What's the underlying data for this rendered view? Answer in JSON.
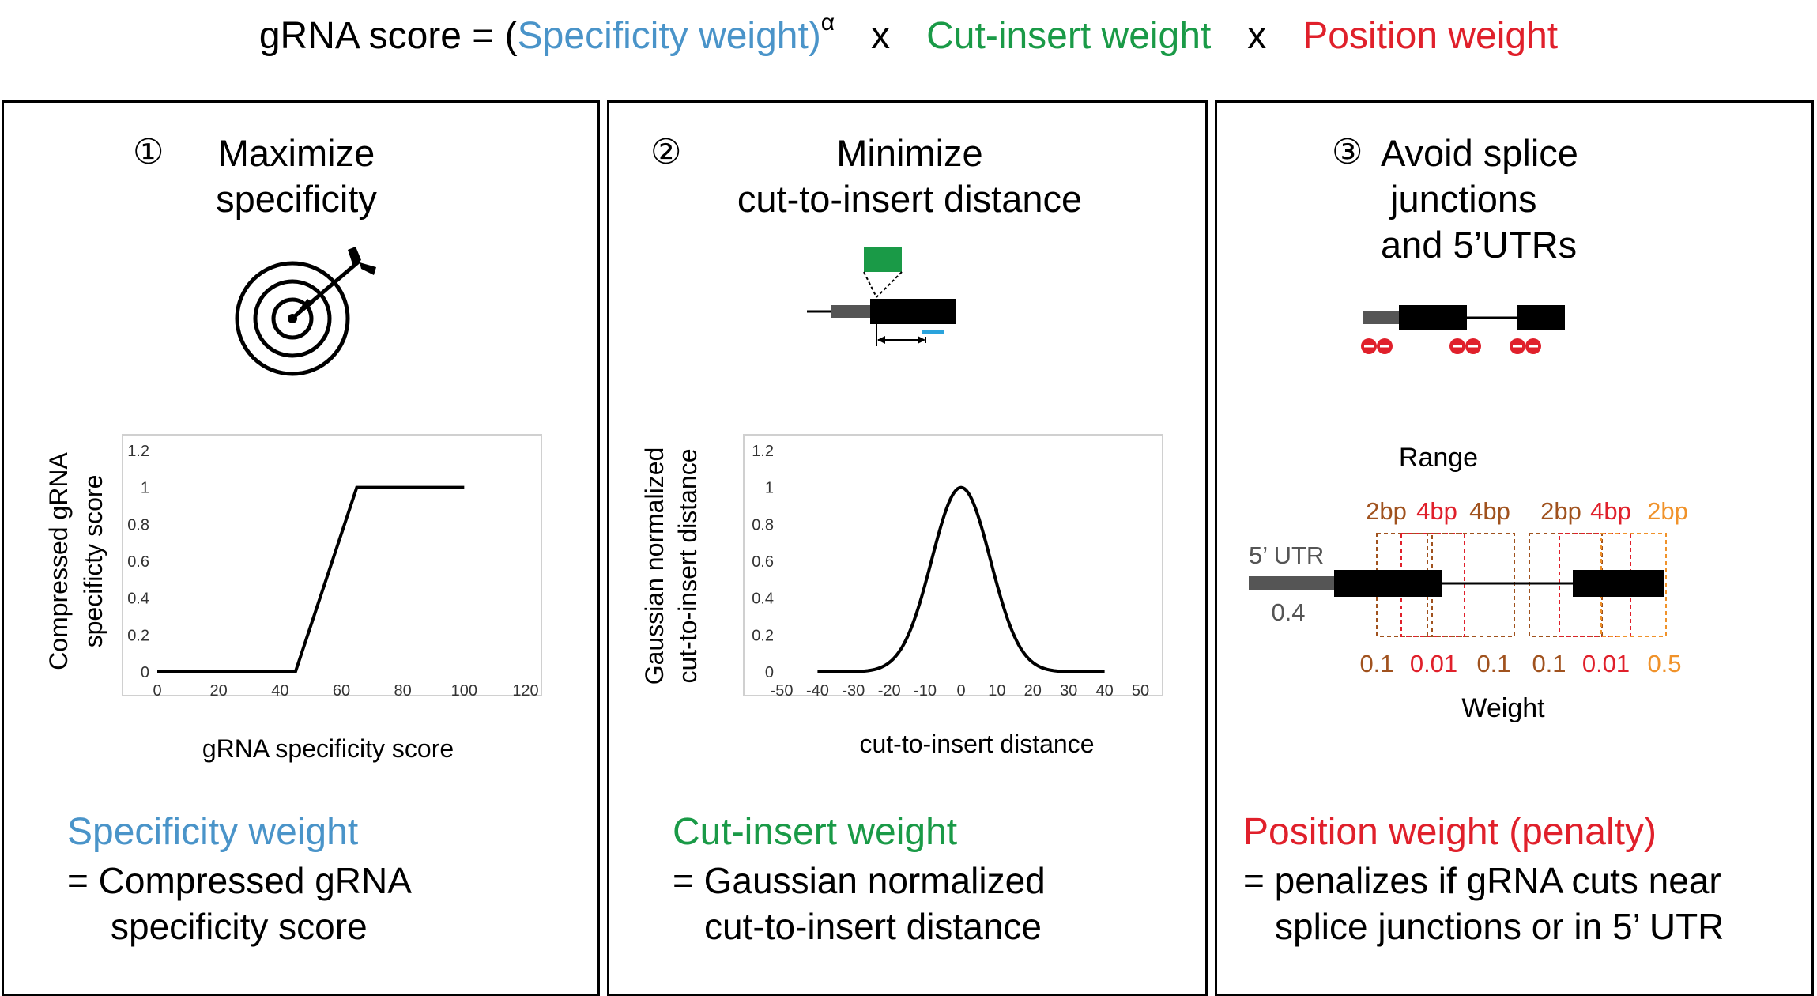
{
  "formula": {
    "prefix": "gRNA score = (",
    "specificity": "Specificity weight",
    "close_paren": ")",
    "alpha": "α",
    "times": "x",
    "cut_insert": "Cut-insert weight",
    "position": "Position weight"
  },
  "colors": {
    "specificity": "#4a94c9",
    "cut_insert": "#1a9a47",
    "position": "#e0202b",
    "range_2bp_inner": "#a0521e",
    "range_4bp": "#e0202b",
    "range_2bp_outer": "#f0922a",
    "utr_gray": "#555555",
    "guide_blue": "#2aa3dc"
  },
  "panel1": {
    "number": "①",
    "title_line1": "Maximize",
    "title_line2": "specificity",
    "icon": "target-arrow-icon",
    "weight_title": "Specificity weight",
    "desc_line1": "= Compressed gRNA",
    "desc_line2": "specificity score",
    "chart": {
      "xlabel": "gRNA specificity score",
      "ylabel_line1": "Compressed gRNA",
      "ylabel_line2": "specificty  score",
      "xticks": [
        "0",
        "20",
        "40",
        "60",
        "80",
        "100",
        "120"
      ],
      "yticks": [
        "0",
        "0.2",
        "0.4",
        "0.6",
        "0.8",
        "1",
        "1.2"
      ]
    }
  },
  "panel2": {
    "number": "②",
    "title_line1": "Minimize",
    "title_line2": "cut-to-insert distance",
    "icon": "insert-gene-diagram-icon",
    "weight_title": "Cut-insert weight",
    "desc_line1": "= Gaussian normalized",
    "desc_line2": "cut-to-insert distance",
    "chart": {
      "xlabel": "cut-to-insert distance",
      "ylabel_line1": "Gaussian normalized",
      "ylabel_line2": "cut-to-insert distance",
      "xticks": [
        "-50",
        "-40",
        "-30",
        "-20",
        "-10",
        "0",
        "10",
        "20",
        "30",
        "40",
        "50"
      ],
      "yticks": [
        "0",
        "0.2",
        "0.4",
        "0.6",
        "0.8",
        "1",
        "1.2"
      ]
    }
  },
  "panel3": {
    "number": "③",
    "title_line1": "Avoid splice",
    "title_line2": "junctions",
    "title_line3": "and 5’UTRs",
    "icon": "exon-penalty-diagram-icon",
    "weight_title": "Position weight (penalty)",
    "desc_line1": "= penalizes if gRNA cuts near",
    "desc_line2": "splice junctions or in 5’ UTR",
    "range_label": "Range",
    "weight_label": "Weight",
    "utr_label": "5’ UTR",
    "utr_weight": "0.4",
    "ranges": [
      "2bp",
      "4bp",
      "4bp",
      "2bp",
      "4bp",
      "2bp"
    ],
    "weights": [
      "0.1",
      "0.01",
      "0.1",
      "0.1",
      "0.01",
      "0.5"
    ]
  },
  "chart_data": [
    {
      "type": "line",
      "xlabel": "gRNA specificity score",
      "ylabel": "Compressed gRNA specificty  score",
      "xlim": [
        0,
        120
      ],
      "ylim": [
        0,
        1.2
      ],
      "series": [
        {
          "x": [
            0,
            45,
            65,
            100
          ],
          "y": [
            0,
            0,
            1,
            1
          ]
        }
      ]
    },
    {
      "type": "line",
      "xlabel": "cut-to-insert distance",
      "ylabel": "Gaussian normalized cut-to-insert distance",
      "xlim": [
        -50,
        50
      ],
      "ylim": [
        0,
        1.2
      ],
      "series": [
        {
          "x": [
            -40,
            -30,
            -20,
            -10,
            0,
            10,
            20,
            30,
            40
          ],
          "y": [
            0,
            0.003,
            0.04,
            0.45,
            1,
            0.45,
            0.04,
            0.003,
            0
          ]
        }
      ]
    }
  ]
}
